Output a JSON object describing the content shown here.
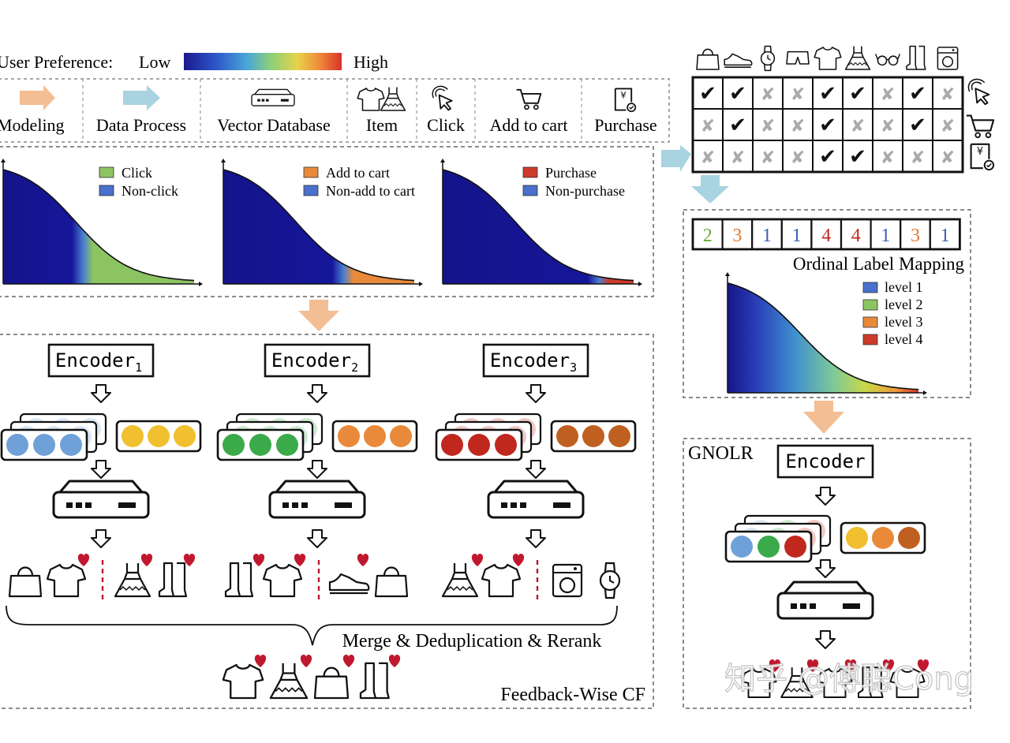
{
  "legend": {
    "pref_label": "User Preference:",
    "low": "Low",
    "high": "High",
    "gradient_colors": [
      "#1a1a8c",
      "#2d55c8",
      "#4aa6d8",
      "#8cd07a",
      "#e6d24a",
      "#f08a3a",
      "#d8322a"
    ]
  },
  "top_legend": {
    "items": [
      {
        "label": "Modeling",
        "icon": "arrow-right-peach-icon"
      },
      {
        "label": "Data Process",
        "icon": "arrow-right-blue-icon"
      },
      {
        "label": "Vector Database",
        "icon": "server-icon"
      },
      {
        "label": "Item",
        "icon": "clothing-icon"
      },
      {
        "label": "Click",
        "icon": "cursor-click-icon"
      },
      {
        "label": "Add to cart",
        "icon": "cart-icon"
      },
      {
        "label": "Purchase",
        "icon": "receipt-icon"
      }
    ]
  },
  "matrix": {
    "columns": [
      "bag",
      "sneaker",
      "watch",
      "shorts",
      "tshirt",
      "dress",
      "glasses",
      "boots",
      "washer"
    ],
    "rows": [
      {
        "icon": "cursor-click-icon",
        "cells": [
          1,
          1,
          0,
          0,
          1,
          1,
          0,
          1,
          0
        ]
      },
      {
        "icon": "cart-icon",
        "cells": [
          0,
          1,
          0,
          0,
          1,
          0,
          0,
          1,
          0
        ]
      },
      {
        "icon": "receipt-icon",
        "cells": [
          0,
          0,
          0,
          0,
          1,
          1,
          0,
          0,
          0
        ]
      }
    ],
    "check": "✔",
    "cross": "✘"
  },
  "distributions": [
    {
      "pos_label": "Click",
      "neg_label": "Non-click",
      "pos_color": "#8cc462",
      "neg_color": "#4a6fcc",
      "threshold": 0.42
    },
    {
      "pos_label": "Add to cart",
      "neg_label": "Non-add to cart",
      "pos_color": "#e88a3a",
      "neg_color": "#4a6fcc",
      "threshold": 0.63
    },
    {
      "pos_label": "Purchase",
      "neg_label": "Non-purchase",
      "pos_color": "#cc3a2a",
      "neg_color": "#4a6fcc",
      "threshold": 0.82
    }
  ],
  "encoders": [
    {
      "name": "Encoder",
      "sub": "1",
      "emb_colors": [
        "#6fa0d8",
        "#6fa0d8",
        "#6fa0d8"
      ],
      "item_colors": [
        "#f0c030",
        "#f0c030",
        "#f0c030"
      ],
      "rec_left": [
        "bag",
        "tshirt"
      ],
      "rec_right": [
        "dress",
        "boots"
      ]
    },
    {
      "name": "Encoder",
      "sub": "2",
      "emb_colors": [
        "#3aaa4a",
        "#3aaa4a",
        "#3aaa4a"
      ],
      "item_colors": [
        "#e88a3a",
        "#e88a3a",
        "#e88a3a"
      ],
      "rec_left": [
        "boots",
        "tshirt"
      ],
      "rec_right": [
        "sneaker",
        "bag"
      ]
    },
    {
      "name": "Encoder",
      "sub": "3",
      "emb_colors": [
        "#c0281e",
        "#c0281e",
        "#c0281e"
      ],
      "item_colors": [
        "#c06020",
        "#c06020",
        "#c06020"
      ],
      "rec_left": [
        "dress",
        "tshirt"
      ],
      "rec_right": [
        "washer",
        "watch"
      ]
    }
  ],
  "merge": {
    "label": "Merge & Deduplication & Rerank",
    "items": [
      "tshirt",
      "dress",
      "bag",
      "boots"
    ],
    "box_label": "Feedback-Wise CF"
  },
  "ordinal": {
    "labels": [
      "2",
      "3",
      "1",
      "1",
      "4",
      "4",
      "1",
      "3",
      "1"
    ],
    "label_colors": {
      "1": "#3a5fb0",
      "2": "#6aaa3a",
      "3": "#e07a30",
      "4": "#c0281e"
    },
    "title": "Ordinal Label Mapping",
    "levels": [
      {
        "label": "level 1",
        "color": "#4a6fcc"
      },
      {
        "label": "level 2",
        "color": "#8cc462"
      },
      {
        "label": "level 3",
        "color": "#e88a3a"
      },
      {
        "label": "level 4",
        "color": "#cc3a2a"
      }
    ]
  },
  "gnolr": {
    "title": "GNOLR",
    "encoder": "Encoder",
    "emb_colors": [
      "#6fa0d8",
      "#3aaa4a",
      "#c0281e"
    ],
    "item_colors": [
      "#f0c030",
      "#e88a3a",
      "#c06020"
    ],
    "rec_items": [
      "tshirt",
      "dress",
      "tshirt",
      "boots",
      "tshirt"
    ]
  },
  "watermark": "知乎 @傅聪Cong"
}
